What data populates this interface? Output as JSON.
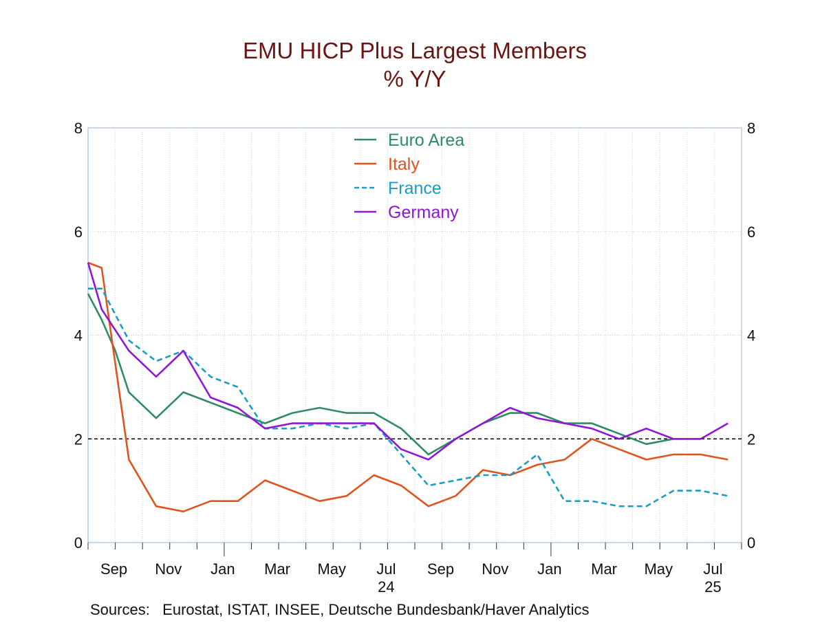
{
  "chart_data": {
    "type": "line",
    "title": "EMU HICP Plus Largest Members",
    "subtitle": "% Y/Y",
    "source": "Sources:   Eurostat, ISTAT, INSEE, Deutsche Bundesbank/Haver Analytics",
    "ylim": [
      0,
      8
    ],
    "yticks": [
      0,
      2,
      4,
      6,
      8
    ],
    "yticks_right": [
      0,
      2,
      4,
      6,
      8
    ],
    "reference_line": 2,
    "x_start_month": "Aug 2023",
    "x_tick_labels": [
      {
        "label": "Sep",
        "month_index": 1
      },
      {
        "label": "Nov",
        "month_index": 3
      },
      {
        "label": "Jan",
        "month_index": 5
      },
      {
        "label": "Mar",
        "month_index": 7
      },
      {
        "label": "May",
        "month_index": 9
      },
      {
        "label": "Jul",
        "month_index": 11
      },
      {
        "label": "Sep",
        "month_index": 13
      },
      {
        "label": "Nov",
        "month_index": 15
      },
      {
        "label": "Jan",
        "month_index": 17
      },
      {
        "label": "Mar",
        "month_index": 19
      },
      {
        "label": "May",
        "month_index": 21
      },
      {
        "label": "Jul",
        "month_index": 23
      }
    ],
    "year_labels": [
      {
        "label": "24",
        "month_index": 11
      },
      {
        "label": "25",
        "month_index": 23
      }
    ],
    "series": [
      {
        "name": "Euro Area",
        "color": "#2e8b63",
        "dash": "solid",
        "points": [
          [
            0,
            4.8
          ],
          [
            0.5,
            4.3
          ],
          [
            1,
            3.7
          ],
          [
            1.5,
            2.9
          ],
          [
            2.5,
            2.4
          ],
          [
            3.5,
            2.9
          ],
          [
            4.5,
            2.7
          ],
          [
            5.5,
            2.5
          ],
          [
            6.5,
            2.3
          ],
          [
            7.5,
            2.5
          ],
          [
            8.5,
            2.6
          ],
          [
            9.5,
            2.5
          ],
          [
            10.5,
            2.5
          ],
          [
            11.5,
            2.2
          ],
          [
            12.5,
            1.7
          ],
          [
            13.5,
            2.0
          ],
          [
            14.5,
            2.3
          ],
          [
            15.5,
            2.5
          ],
          [
            16.5,
            2.5
          ],
          [
            17.5,
            2.3
          ],
          [
            18.5,
            2.3
          ],
          [
            19.5,
            2.1
          ],
          [
            20.5,
            1.9
          ],
          [
            21.5,
            2.0
          ],
          [
            22.5,
            2.0
          ]
        ]
      },
      {
        "name": "Italy",
        "color": "#e0521e",
        "dash": "solid",
        "points": [
          [
            0,
            5.4
          ],
          [
            0.5,
            5.3
          ],
          [
            1.5,
            1.6
          ],
          [
            2.5,
            0.7
          ],
          [
            3.5,
            0.6
          ],
          [
            4.5,
            0.8
          ],
          [
            5.5,
            0.8
          ],
          [
            6.5,
            1.2
          ],
          [
            7.5,
            1.0
          ],
          [
            8.5,
            0.8
          ],
          [
            9.5,
            0.9
          ],
          [
            10.5,
            1.3
          ],
          [
            11.5,
            1.1
          ],
          [
            12.5,
            0.7
          ],
          [
            13.5,
            0.9
          ],
          [
            14.5,
            1.4
          ],
          [
            15.5,
            1.3
          ],
          [
            16.5,
            1.5
          ],
          [
            17.5,
            1.6
          ],
          [
            18.5,
            2.0
          ],
          [
            19.5,
            1.8
          ],
          [
            20.5,
            1.6
          ],
          [
            21.5,
            1.7
          ],
          [
            22.5,
            1.7
          ],
          [
            23.5,
            1.6
          ]
        ]
      },
      {
        "name": "France",
        "color": "#1a9cc4",
        "dash": "dashed",
        "points": [
          [
            0,
            4.9
          ],
          [
            0.5,
            4.9
          ],
          [
            1.5,
            3.9
          ],
          [
            2.5,
            3.5
          ],
          [
            3.5,
            3.7
          ],
          [
            4.5,
            3.2
          ],
          [
            5.5,
            3.0
          ],
          [
            6.5,
            2.2
          ],
          [
            7.5,
            2.2
          ],
          [
            8.5,
            2.3
          ],
          [
            9.5,
            2.2
          ],
          [
            10.5,
            2.3
          ],
          [
            11.5,
            1.7
          ],
          [
            12.5,
            1.1
          ],
          [
            13.5,
            1.2
          ],
          [
            14.5,
            1.3
          ],
          [
            15.5,
            1.3
          ],
          [
            16.5,
            1.7
          ],
          [
            17.5,
            0.8
          ],
          [
            18.5,
            0.8
          ],
          [
            19.5,
            0.7
          ],
          [
            20.5,
            0.7
          ],
          [
            21.5,
            1.0
          ],
          [
            22.5,
            1.0
          ],
          [
            23.5,
            0.9
          ]
        ]
      },
      {
        "name": "Germany",
        "color": "#8e17d6",
        "dash": "solid",
        "points": [
          [
            0,
            5.4
          ],
          [
            0.5,
            4.5
          ],
          [
            1.5,
            3.7
          ],
          [
            2.5,
            3.2
          ],
          [
            3.5,
            3.7
          ],
          [
            4.5,
            2.8
          ],
          [
            5.5,
            2.6
          ],
          [
            6.5,
            2.2
          ],
          [
            7.5,
            2.3
          ],
          [
            8.5,
            2.3
          ],
          [
            9.5,
            2.3
          ],
          [
            10.5,
            2.3
          ],
          [
            11.5,
            1.8
          ],
          [
            12.5,
            1.6
          ],
          [
            13.5,
            2.0
          ],
          [
            14.5,
            2.3
          ],
          [
            15.5,
            2.6
          ],
          [
            16.5,
            2.4
          ],
          [
            17.5,
            2.3
          ],
          [
            18.5,
            2.2
          ],
          [
            19.5,
            2.0
          ],
          [
            20.5,
            2.2
          ],
          [
            21.5,
            2.0
          ],
          [
            22.5,
            2.0
          ],
          [
            23.5,
            2.3
          ]
        ]
      }
    ]
  }
}
